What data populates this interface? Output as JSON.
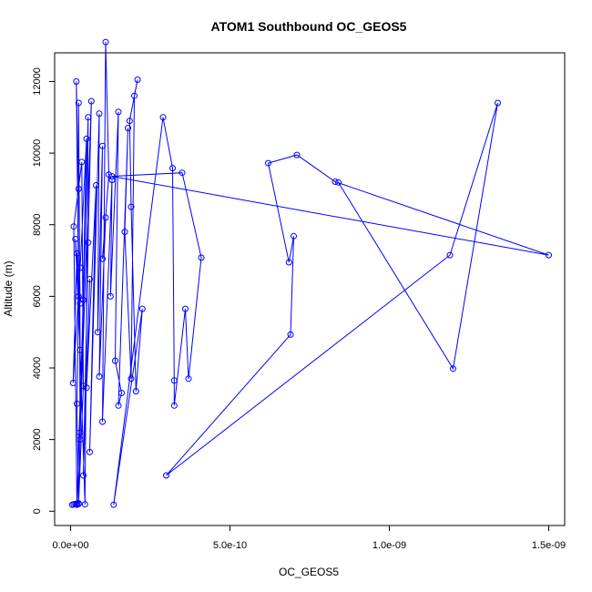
{
  "chart_data": {
    "type": "line",
    "title": "ATOM1 Southbound OC_GEOS5",
    "xlabel": "OC_GEOS5",
    "ylabel": "Altitude (m)",
    "xlim": [
      -5e-11,
      1.55e-09
    ],
    "ylim": [
      -400,
      12800
    ],
    "x_ticks": [
      0,
      5e-10,
      1e-09,
      1.5e-09
    ],
    "x_tick_labels": [
      "0.0e+00",
      "5.0e-10",
      "1.0e-09",
      "1.5e-09"
    ],
    "y_ticks": [
      0,
      2000,
      4000,
      6000,
      8000,
      10000,
      12000
    ],
    "y_tick_labels": [
      "0",
      "2000",
      "4000",
      "6000",
      "8000",
      "10000",
      "12000"
    ],
    "grid": false,
    "legend": "none",
    "series": [
      {
        "color": "#0000ff",
        "marker": "open-circle",
        "points": [
          [
            5e-12,
            180
          ],
          [
            1e-11,
            190
          ],
          [
            1.5e-11,
            200
          ],
          [
            2e-11,
            210
          ],
          [
            2.5e-11,
            220
          ],
          [
            2e-11,
            3000
          ],
          [
            2.5e-11,
            6000
          ],
          [
            1.8e-11,
            12000
          ],
          [
            2.5e-11,
            9000
          ],
          [
            3e-11,
            5800
          ],
          [
            1.5e-11,
            7600
          ],
          [
            3e-11,
            4500
          ],
          [
            2.5e-11,
            11400
          ],
          [
            3e-11,
            2000
          ],
          [
            4e-11,
            5900
          ],
          [
            2e-11,
            180
          ],
          [
            1e-11,
            7950
          ],
          [
            3.5e-11,
            9750
          ],
          [
            4e-11,
            3500
          ],
          [
            2.5e-11,
            200
          ],
          [
            5e-11,
            10400
          ],
          [
            3e-11,
            6800
          ],
          [
            8e-12,
            3580
          ],
          [
            2e-11,
            7200
          ],
          [
            4.5e-11,
            190
          ],
          [
            5.5e-11,
            11000
          ],
          [
            3e-11,
            2200
          ],
          [
            6.5e-11,
            11450
          ],
          [
            5.5e-11,
            7500
          ],
          [
            4e-11,
            1000
          ],
          [
            6e-11,
            6480
          ],
          [
            5e-11,
            3450
          ],
          [
            8e-11,
            9100
          ],
          [
            6e-11,
            1650
          ],
          [
            9e-11,
            11100
          ],
          [
            8.5e-11,
            5000
          ],
          [
            1e-10,
            10200
          ],
          [
            9e-11,
            3760
          ],
          [
            1.1e-10,
            8200
          ],
          [
            1e-10,
            7050
          ],
          [
            1.2e-10,
            9400
          ],
          [
            1.1e-10,
            13100
          ],
          [
            1e-10,
            2500
          ],
          [
            1.3e-10,
            9250
          ],
          [
            1.25e-10,
            6000
          ],
          [
            1.5e-10,
            11150
          ],
          [
            1.4e-10,
            4200
          ],
          [
            1.6e-10,
            3300
          ],
          [
            1.5e-10,
            2950
          ],
          [
            1.8e-10,
            10700
          ],
          [
            1.7e-10,
            7800
          ],
          [
            1.9e-10,
            3700
          ],
          [
            2e-10,
            11600
          ],
          [
            2.1e-10,
            12050
          ],
          [
            1.85e-10,
            10900
          ],
          [
            1.9e-10,
            8500
          ],
          [
            2.05e-10,
            3350
          ],
          [
            2.25e-10,
            5650
          ],
          [
            1.35e-10,
            180
          ],
          [
            2.9e-10,
            11000
          ],
          [
            3.2e-10,
            9580
          ],
          [
            3.25e-10,
            3650
          ],
          [
            3.25e-10,
            2950
          ],
          [
            3.6e-10,
            5650
          ],
          [
            3.7e-10,
            3700
          ],
          [
            4.1e-10,
            7080
          ],
          [
            3.5e-10,
            9450
          ],
          [
            1.3e-10,
            9350
          ],
          [
            1.5e-09,
            7150
          ],
          [
            8.3e-10,
            9200
          ],
          [
            7.1e-10,
            9950
          ],
          [
            6.2e-10,
            9720
          ],
          [
            6.85e-10,
            6950
          ],
          [
            7e-10,
            7680
          ],
          [
            6.9e-10,
            4930
          ],
          [
            3e-10,
            1000
          ],
          [
            1.19e-09,
            7150
          ],
          [
            1.34e-09,
            11400
          ],
          [
            1.2e-09,
            3980
          ],
          [
            8.4e-10,
            9180
          ]
        ]
      }
    ]
  }
}
